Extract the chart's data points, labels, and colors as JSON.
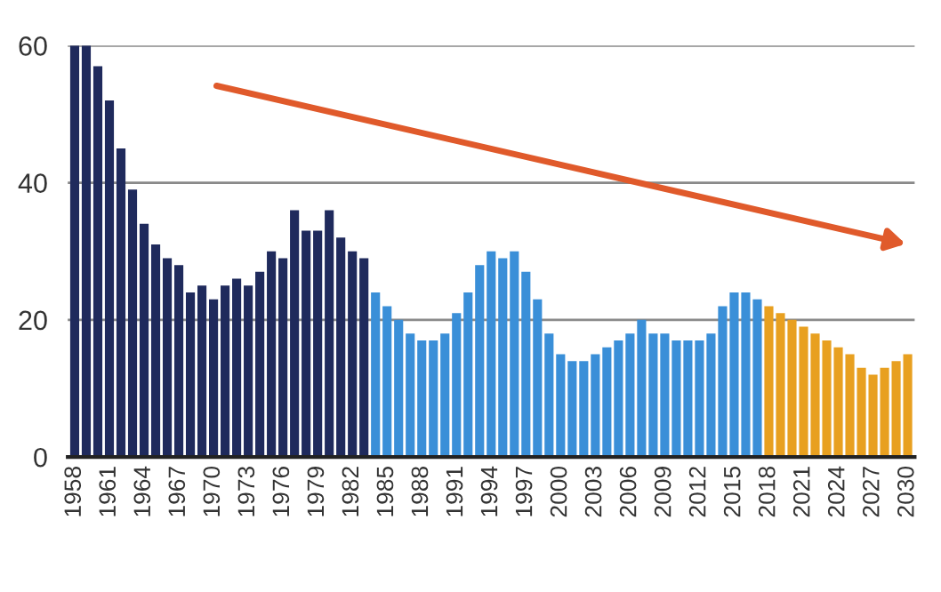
{
  "chart_data": {
    "type": "bar",
    "categories": [
      "1958",
      null,
      null,
      "1961",
      null,
      null,
      "1964",
      null,
      null,
      "1967",
      null,
      null,
      "1970",
      null,
      null,
      "1973",
      null,
      null,
      "1976",
      null,
      null,
      "1979",
      null,
      null,
      "1982",
      null,
      null,
      "1985",
      null,
      null,
      "1988",
      null,
      null,
      "1991",
      null,
      null,
      "1994",
      null,
      null,
      "1997",
      null,
      null,
      "2000",
      null,
      null,
      "2003",
      null,
      null,
      "2006",
      null,
      null,
      "2009",
      null,
      null,
      "2012",
      null,
      null,
      "2015",
      null,
      null,
      "2018",
      null,
      null,
      "2021",
      null,
      null,
      "2024",
      null,
      null,
      "2027",
      null,
      null,
      "2030"
    ],
    "values": [
      60,
      60,
      57,
      52,
      45,
      39,
      34,
      31,
      29,
      28,
      24,
      25,
      23,
      25,
      26,
      25,
      27,
      30,
      29,
      36,
      33,
      33,
      36,
      32,
      30,
      29,
      24,
      22,
      20,
      18,
      17,
      17,
      18,
      21,
      24,
      28,
      30,
      29,
      30,
      27,
      23,
      18,
      15,
      14,
      14,
      15,
      16,
      17,
      18,
      20,
      18,
      18,
      17,
      17,
      17,
      18,
      22,
      24,
      24,
      23,
      22,
      21,
      20,
      19,
      18,
      17,
      16,
      15,
      13,
      12,
      13,
      14,
      15
    ],
    "colors": [
      "#1f2a5c",
      "#1f2a5c",
      "#1f2a5c",
      "#1f2a5c",
      "#1f2a5c",
      "#1f2a5c",
      "#1f2a5c",
      "#1f2a5c",
      "#1f2a5c",
      "#1f2a5c",
      "#1f2a5c",
      "#1f2a5c",
      "#1f2a5c",
      "#1f2a5c",
      "#1f2a5c",
      "#1f2a5c",
      "#1f2a5c",
      "#1f2a5c",
      "#1f2a5c",
      "#1f2a5c",
      "#1f2a5c",
      "#1f2a5c",
      "#1f2a5c",
      "#1f2a5c",
      "#1f2a5c",
      "#1f2a5c",
      "#3a8fd8",
      "#3a8fd8",
      "#3a8fd8",
      "#3a8fd8",
      "#3a8fd8",
      "#3a8fd8",
      "#3a8fd8",
      "#3a8fd8",
      "#3a8fd8",
      "#3a8fd8",
      "#3a8fd8",
      "#3a8fd8",
      "#3a8fd8",
      "#3a8fd8",
      "#3a8fd8",
      "#3a8fd8",
      "#3a8fd8",
      "#3a8fd8",
      "#3a8fd8",
      "#3a8fd8",
      "#3a8fd8",
      "#3a8fd8",
      "#3a8fd8",
      "#3a8fd8",
      "#3a8fd8",
      "#3a8fd8",
      "#3a8fd8",
      "#3a8fd8",
      "#3a8fd8",
      "#3a8fd8",
      "#3a8fd8",
      "#3a8fd8",
      "#3a8fd8",
      "#3a8fd8",
      "#e8a020",
      "#e8a020",
      "#e8a020",
      "#e8a020",
      "#e8a020",
      "#e8a020",
      "#e8a020",
      "#e8a020",
      "#e8a020",
      "#e8a020",
      "#e8a020",
      "#e8a020",
      "#e8a020"
    ],
    "ylim": [
      0,
      60
    ],
    "yticks": [
      0,
      20,
      40,
      60
    ],
    "grid": "y"
  }
}
